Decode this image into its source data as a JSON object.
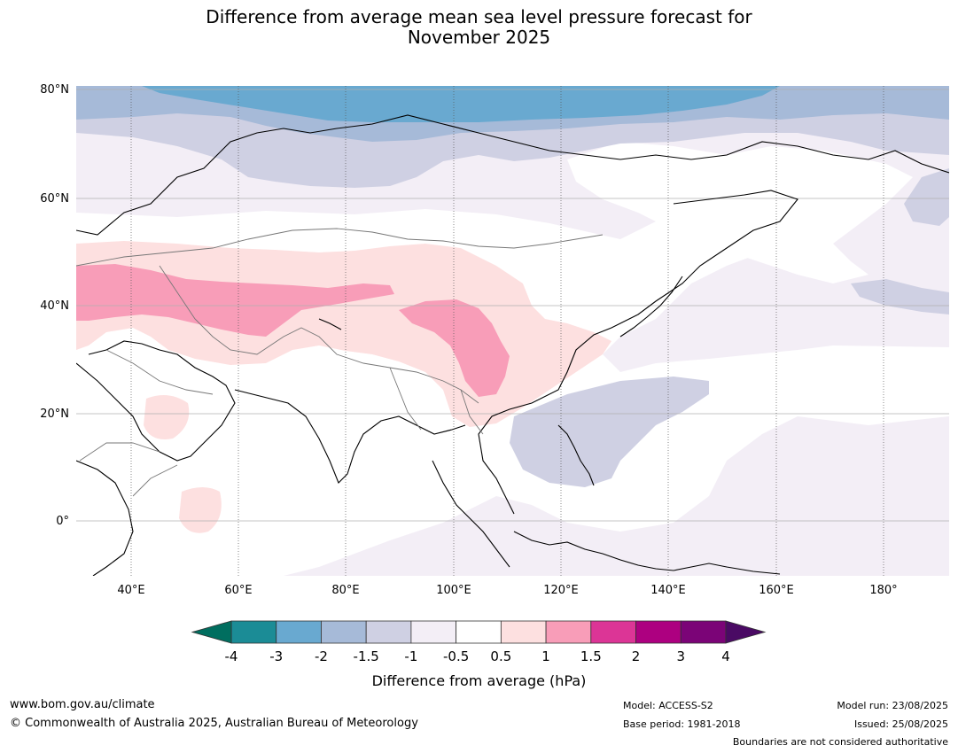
{
  "title": {
    "line1": "Difference from average mean sea level pressure forecast for",
    "line2": "November 2025"
  },
  "map": {
    "lat_labels": [
      {
        "label": "80°N"
      },
      {
        "label": "60°N"
      },
      {
        "label": "40°N"
      },
      {
        "label": "20°N"
      },
      {
        "label": "0°"
      }
    ],
    "lon_labels": [
      {
        "label": "40°E"
      },
      {
        "label": "60°E"
      },
      {
        "label": "80°E"
      },
      {
        "label": "100°E"
      },
      {
        "label": "120°E"
      },
      {
        "label": "140°E"
      },
      {
        "label": "160°E"
      },
      {
        "label": "180°"
      }
    ]
  },
  "colorbar": {
    "title": "Difference from average (hPa)",
    "below_color": "#006e5f",
    "above_color": "#4a0a64",
    "bins": [
      {
        "color": "#1b8c96"
      },
      {
        "color": "#69a9d0"
      },
      {
        "color": "#a6bad8"
      },
      {
        "color": "#cfd0e3"
      },
      {
        "color": "#f3eef6"
      },
      {
        "color": "#ffffff"
      },
      {
        "color": "#fde0e0"
      },
      {
        "color": "#f89db8"
      },
      {
        "color": "#dc3596"
      },
      {
        "color": "#ad0080"
      },
      {
        "color": "#7b0477"
      }
    ],
    "tick_labels": [
      "-4",
      "-3",
      "-2",
      "-1.5",
      "-1",
      "-0.5",
      "0.5",
      "1",
      "1.5",
      "2",
      "3",
      "4"
    ]
  },
  "footer": {
    "website": "www.bom.gov.au/climate",
    "copyright": "© Commonwealth of Australia 2025, Australian Bureau of Meteorology",
    "model": "Model: ACCESS-S2",
    "base_period": "Base period: 1981-2018",
    "model_run": "Model run: 23/08/2025",
    "issued": "Issued: 25/08/2025",
    "disclaimer": "Boundaries are not considered authoritative"
  }
}
